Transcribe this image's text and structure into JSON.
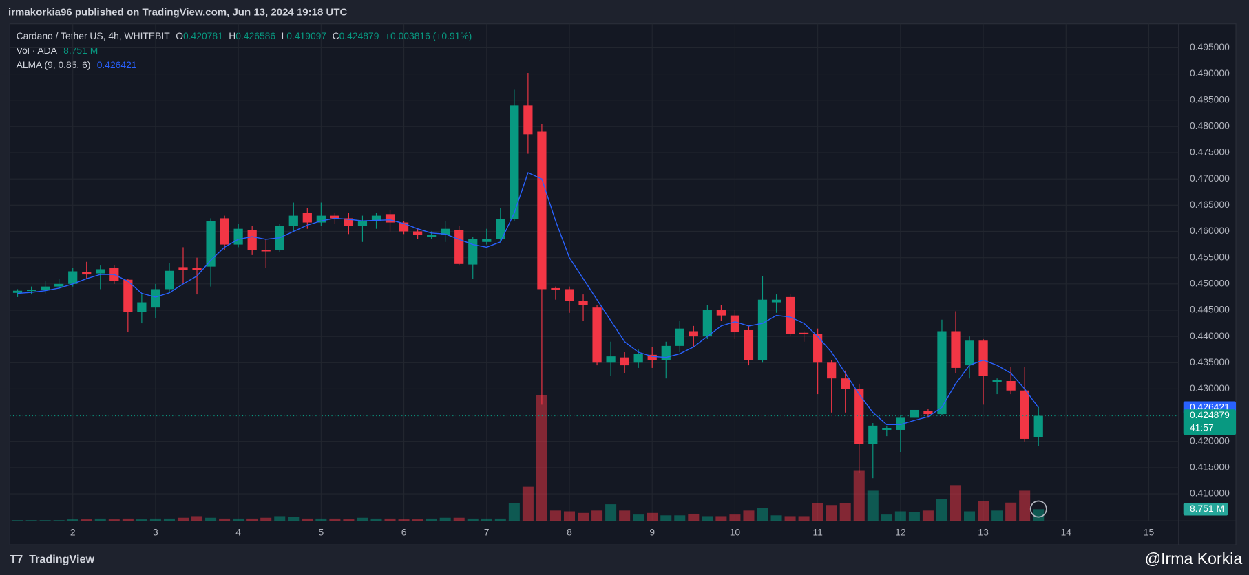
{
  "header": {
    "published": "irmakorkia96 published on TradingView.com, Jun 13, 2024 19:18 UTC"
  },
  "footer": {
    "brand": "TradingView",
    "author": "@Irma Korkia"
  },
  "chart_data": {
    "type": "candlestick",
    "title": "Cardano / Tether US, 4h, WHITEBIT",
    "ohlc_letters": [
      "O",
      "H",
      "L",
      "C"
    ],
    "change": "+0.003816 (+0.91%)",
    "countdown": "41:57",
    "up_color": "#089981",
    "down_color": "#f23645",
    "x": [
      1.3333,
      1.5,
      1.6667,
      1.8333,
      2,
      2.1667,
      2.3333,
      2.5,
      2.6667,
      2.8333,
      3,
      3.1667,
      3.3333,
      3.5,
      3.6667,
      3.8333,
      4,
      4.1667,
      4.3333,
      4.5,
      4.6667,
      4.8333,
      5,
      5.1667,
      5.3333,
      5.5,
      5.6667,
      5.8333,
      6,
      6.1667,
      6.3333,
      6.5,
      6.6667,
      6.8333,
      7,
      7.1667,
      7.3333,
      7.5,
      7.6667,
      7.8333,
      8,
      8.1667,
      8.3333,
      8.5,
      8.6667,
      8.8333,
      9,
      9.1667,
      9.3333,
      9.5,
      9.6667,
      9.8333,
      10,
      10.1667,
      10.3333,
      10.5,
      10.6667,
      10.8333,
      11,
      11.1667,
      11.3333,
      11.5,
      11.6667,
      11.8333,
      12,
      12.1667,
      12.3333,
      12.5,
      12.6667,
      12.8333,
      13,
      13.1667,
      13.3333,
      13.5,
      13.6667
    ],
    "open": [
      0.4483,
      0.4487,
      0.4488,
      0.4495,
      0.45,
      0.4523,
      0.452,
      0.453,
      0.4508,
      0.4447,
      0.4455,
      0.449,
      0.4532,
      0.453,
      0.4533,
      0.4625,
      0.4575,
      0.4603,
      0.4565,
      0.4565,
      0.461,
      0.4635,
      0.4617,
      0.463,
      0.4625,
      0.461,
      0.462,
      0.4633,
      0.4617,
      0.46,
      0.459,
      0.4593,
      0.4603,
      0.4537,
      0.458,
      0.4585,
      0.4623,
      0.484,
      0.479,
      0.4492,
      0.449,
      0.4468,
      0.4455,
      0.435,
      0.436,
      0.435,
      0.4365,
      0.4355,
      0.4382,
      0.441,
      0.44,
      0.445,
      0.444,
      0.4412,
      0.4355,
      0.4465,
      0.4475,
      0.4407,
      0.4405,
      0.435,
      0.432,
      0.43,
      0.4195,
      0.4222,
      0.4222,
      0.4245,
      0.4258,
      0.4252,
      0.441,
      0.4345,
      0.4392,
      0.4313,
      0.4315,
      0.4297,
      0.420781
    ],
    "high": [
      0.449,
      0.4495,
      0.4505,
      0.451,
      0.453,
      0.4542,
      0.4535,
      0.4535,
      0.451,
      0.448,
      0.45,
      0.454,
      0.457,
      0.455,
      0.4625,
      0.463,
      0.4615,
      0.461,
      0.4585,
      0.4615,
      0.4655,
      0.4645,
      0.4655,
      0.4635,
      0.4635,
      0.463,
      0.4635,
      0.464,
      0.462,
      0.4605,
      0.46,
      0.462,
      0.461,
      0.459,
      0.4605,
      0.4645,
      0.487,
      0.4902,
      0.4805,
      0.4495,
      0.4495,
      0.448,
      0.446,
      0.439,
      0.437,
      0.4375,
      0.438,
      0.439,
      0.443,
      0.442,
      0.446,
      0.446,
      0.445,
      0.442,
      0.4515,
      0.448,
      0.448,
      0.441,
      0.4415,
      0.4355,
      0.4335,
      0.431,
      0.4235,
      0.423,
      0.425,
      0.426,
      0.4262,
      0.4432,
      0.4448,
      0.44,
      0.4395,
      0.432,
      0.4342,
      0.4342,
      0.426586
    ],
    "low": [
      0.4475,
      0.448,
      0.4482,
      0.449,
      0.4495,
      0.451,
      0.449,
      0.45,
      0.4408,
      0.4425,
      0.4435,
      0.4485,
      0.45,
      0.448,
      0.4495,
      0.4565,
      0.457,
      0.4555,
      0.453,
      0.456,
      0.46,
      0.4605,
      0.461,
      0.4615,
      0.4595,
      0.458,
      0.4605,
      0.46,
      0.4595,
      0.4585,
      0.4585,
      0.458,
      0.4535,
      0.451,
      0.4575,
      0.458,
      0.462,
      0.4748,
      0.427,
      0.447,
      0.4445,
      0.443,
      0.4345,
      0.4325,
      0.433,
      0.434,
      0.434,
      0.432,
      0.437,
      0.438,
      0.4395,
      0.443,
      0.4395,
      0.4345,
      0.435,
      0.4445,
      0.44,
      0.439,
      0.429,
      0.4255,
      0.4255,
      0.414,
      0.413,
      0.421,
      0.418,
      0.4245,
      0.4245,
      0.425,
      0.433,
      0.432,
      0.427,
      0.429,
      0.429,
      0.42,
      0.419097
    ],
    "close": [
      0.4487,
      0.4488,
      0.4495,
      0.45,
      0.4524,
      0.4518,
      0.4528,
      0.4505,
      0.4447,
      0.4465,
      0.449,
      0.4525,
      0.4527,
      0.4527,
      0.462,
      0.4575,
      0.4605,
      0.4565,
      0.4562,
      0.461,
      0.463,
      0.4617,
      0.463,
      0.4625,
      0.461,
      0.462,
      0.463,
      0.4617,
      0.46,
      0.4593,
      0.4593,
      0.4605,
      0.4538,
      0.4585,
      0.4585,
      0.4623,
      0.484,
      0.4785,
      0.449,
      0.4488,
      0.4468,
      0.446,
      0.435,
      0.4362,
      0.4345,
      0.4367,
      0.4355,
      0.4382,
      0.4415,
      0.44,
      0.445,
      0.444,
      0.4408,
      0.4355,
      0.447,
      0.447,
      0.4405,
      0.4405,
      0.435,
      0.432,
      0.43,
      0.4195,
      0.423,
      0.4225,
      0.4245,
      0.426,
      0.4252,
      0.441,
      0.434,
      0.4392,
      0.4325,
      0.4317,
      0.4297,
      0.4205,
      0.424879
    ],
    "volume": {
      "name": "Vol · ADA",
      "values": [
        0.59,
        0.59,
        0.59,
        0.59,
        1.18,
        1.18,
        1.78,
        1.18,
        1.78,
        1.18,
        1.78,
        1.78,
        2.37,
        3.55,
        2.37,
        1.78,
        1.78,
        1.78,
        2.37,
        3.55,
        2.96,
        1.78,
        1.78,
        1.78,
        1.18,
        2.37,
        1.78,
        1.78,
        1.18,
        1.18,
        1.78,
        2.37,
        2.37,
        1.78,
        1.78,
        1.78,
        13.02,
        25.46,
        93.5,
        7.7,
        7.1,
        5.92,
        7.7,
        12.43,
        7.7,
        4.74,
        5.92,
        4.14,
        4.14,
        5.33,
        3.55,
        3.55,
        4.74,
        7.7,
        9.47,
        4.14,
        3.55,
        3.55,
        13.02,
        11.84,
        13.02,
        37.3,
        22.5,
        4.74,
        7.1,
        6.51,
        7.7,
        16.58,
        26.64,
        7.1,
        14.8,
        7.7,
        13.62,
        22.5,
        8.751
      ],
      "value_labels": [
        null,
        null,
        null,
        null,
        null,
        null,
        null,
        null,
        null,
        null,
        null,
        null,
        null,
        null,
        null,
        null,
        null,
        null,
        null,
        null,
        null,
        null,
        null,
        null,
        null,
        null,
        null,
        null,
        null,
        null,
        null,
        null,
        null,
        null,
        null,
        null,
        null,
        null,
        null,
        null,
        null,
        null,
        null,
        null,
        null,
        null,
        null,
        null,
        null,
        null,
        null,
        null,
        null,
        null,
        null,
        null,
        null,
        null,
        null,
        null,
        null,
        null,
        null,
        null,
        null,
        null,
        null,
        null,
        null,
        null,
        null,
        null,
        null,
        null,
        "8.751 M"
      ],
      "color": "#26a69a"
    },
    "vlim": [
      0,
      370
    ],
    "alma": {
      "name": "ALMA (9, 0.85, 6)",
      "color": "#2962ff",
      "values": [
        0.4482,
        0.4484,
        0.4487,
        0.4492,
        0.45,
        0.451,
        0.4518,
        0.4518,
        0.4505,
        0.4482,
        0.4475,
        0.4483,
        0.45,
        0.4515,
        0.4545,
        0.457,
        0.4585,
        0.459,
        0.4585,
        0.4588,
        0.46,
        0.4612,
        0.462,
        0.4625,
        0.4623,
        0.462,
        0.4621,
        0.4622,
        0.4615,
        0.4605,
        0.4597,
        0.4595,
        0.4585,
        0.4575,
        0.457,
        0.458,
        0.4635,
        0.4712,
        0.47,
        0.462,
        0.455,
        0.451,
        0.447,
        0.443,
        0.439,
        0.437,
        0.4362,
        0.436,
        0.4367,
        0.438,
        0.44,
        0.442,
        0.4428,
        0.442,
        0.4425,
        0.444,
        0.4437,
        0.4425,
        0.44,
        0.437,
        0.433,
        0.429,
        0.4255,
        0.4232,
        0.4232,
        0.424,
        0.4247,
        0.4265,
        0.431,
        0.4345,
        0.4355,
        0.4345,
        0.433,
        0.43,
        0.426421
      ]
    },
    "xlim": [
      1.24,
      15.36
    ],
    "xticks": [
      2,
      3,
      4,
      5,
      6,
      7,
      8,
      9,
      10,
      11,
      12,
      13,
      14,
      15
    ],
    "ylim": [
      0.40485,
      0.49955
    ],
    "yticks": [
      {
        "value": 0.41,
        "label": "0.410000"
      },
      {
        "value": 0.415,
        "label": "0.415000"
      },
      {
        "value": 0.42,
        "label": "0.420000"
      },
      {
        "value": 0.425,
        "label": "0.425000"
      },
      {
        "value": 0.43,
        "label": "0.430000"
      },
      {
        "value": 0.435,
        "label": "0.435000"
      },
      {
        "value": 0.44,
        "label": "0.440000"
      },
      {
        "value": 0.445,
        "label": "0.445000"
      },
      {
        "value": 0.45,
        "label": "0.450000"
      },
      {
        "value": 0.455,
        "label": "0.455000"
      },
      {
        "value": 0.46,
        "label": "0.460000"
      },
      {
        "value": 0.465,
        "label": "0.465000"
      },
      {
        "value": 0.47,
        "label": "0.470000"
      },
      {
        "value": 0.475,
        "label": "0.475000"
      },
      {
        "value": 0.48,
        "label": "0.480000"
      },
      {
        "value": 0.485,
        "label": "0.485000"
      },
      {
        "value": 0.49,
        "label": "0.490000"
      },
      {
        "value": 0.495,
        "label": "0.495000"
      }
    ],
    "grid": true
  }
}
